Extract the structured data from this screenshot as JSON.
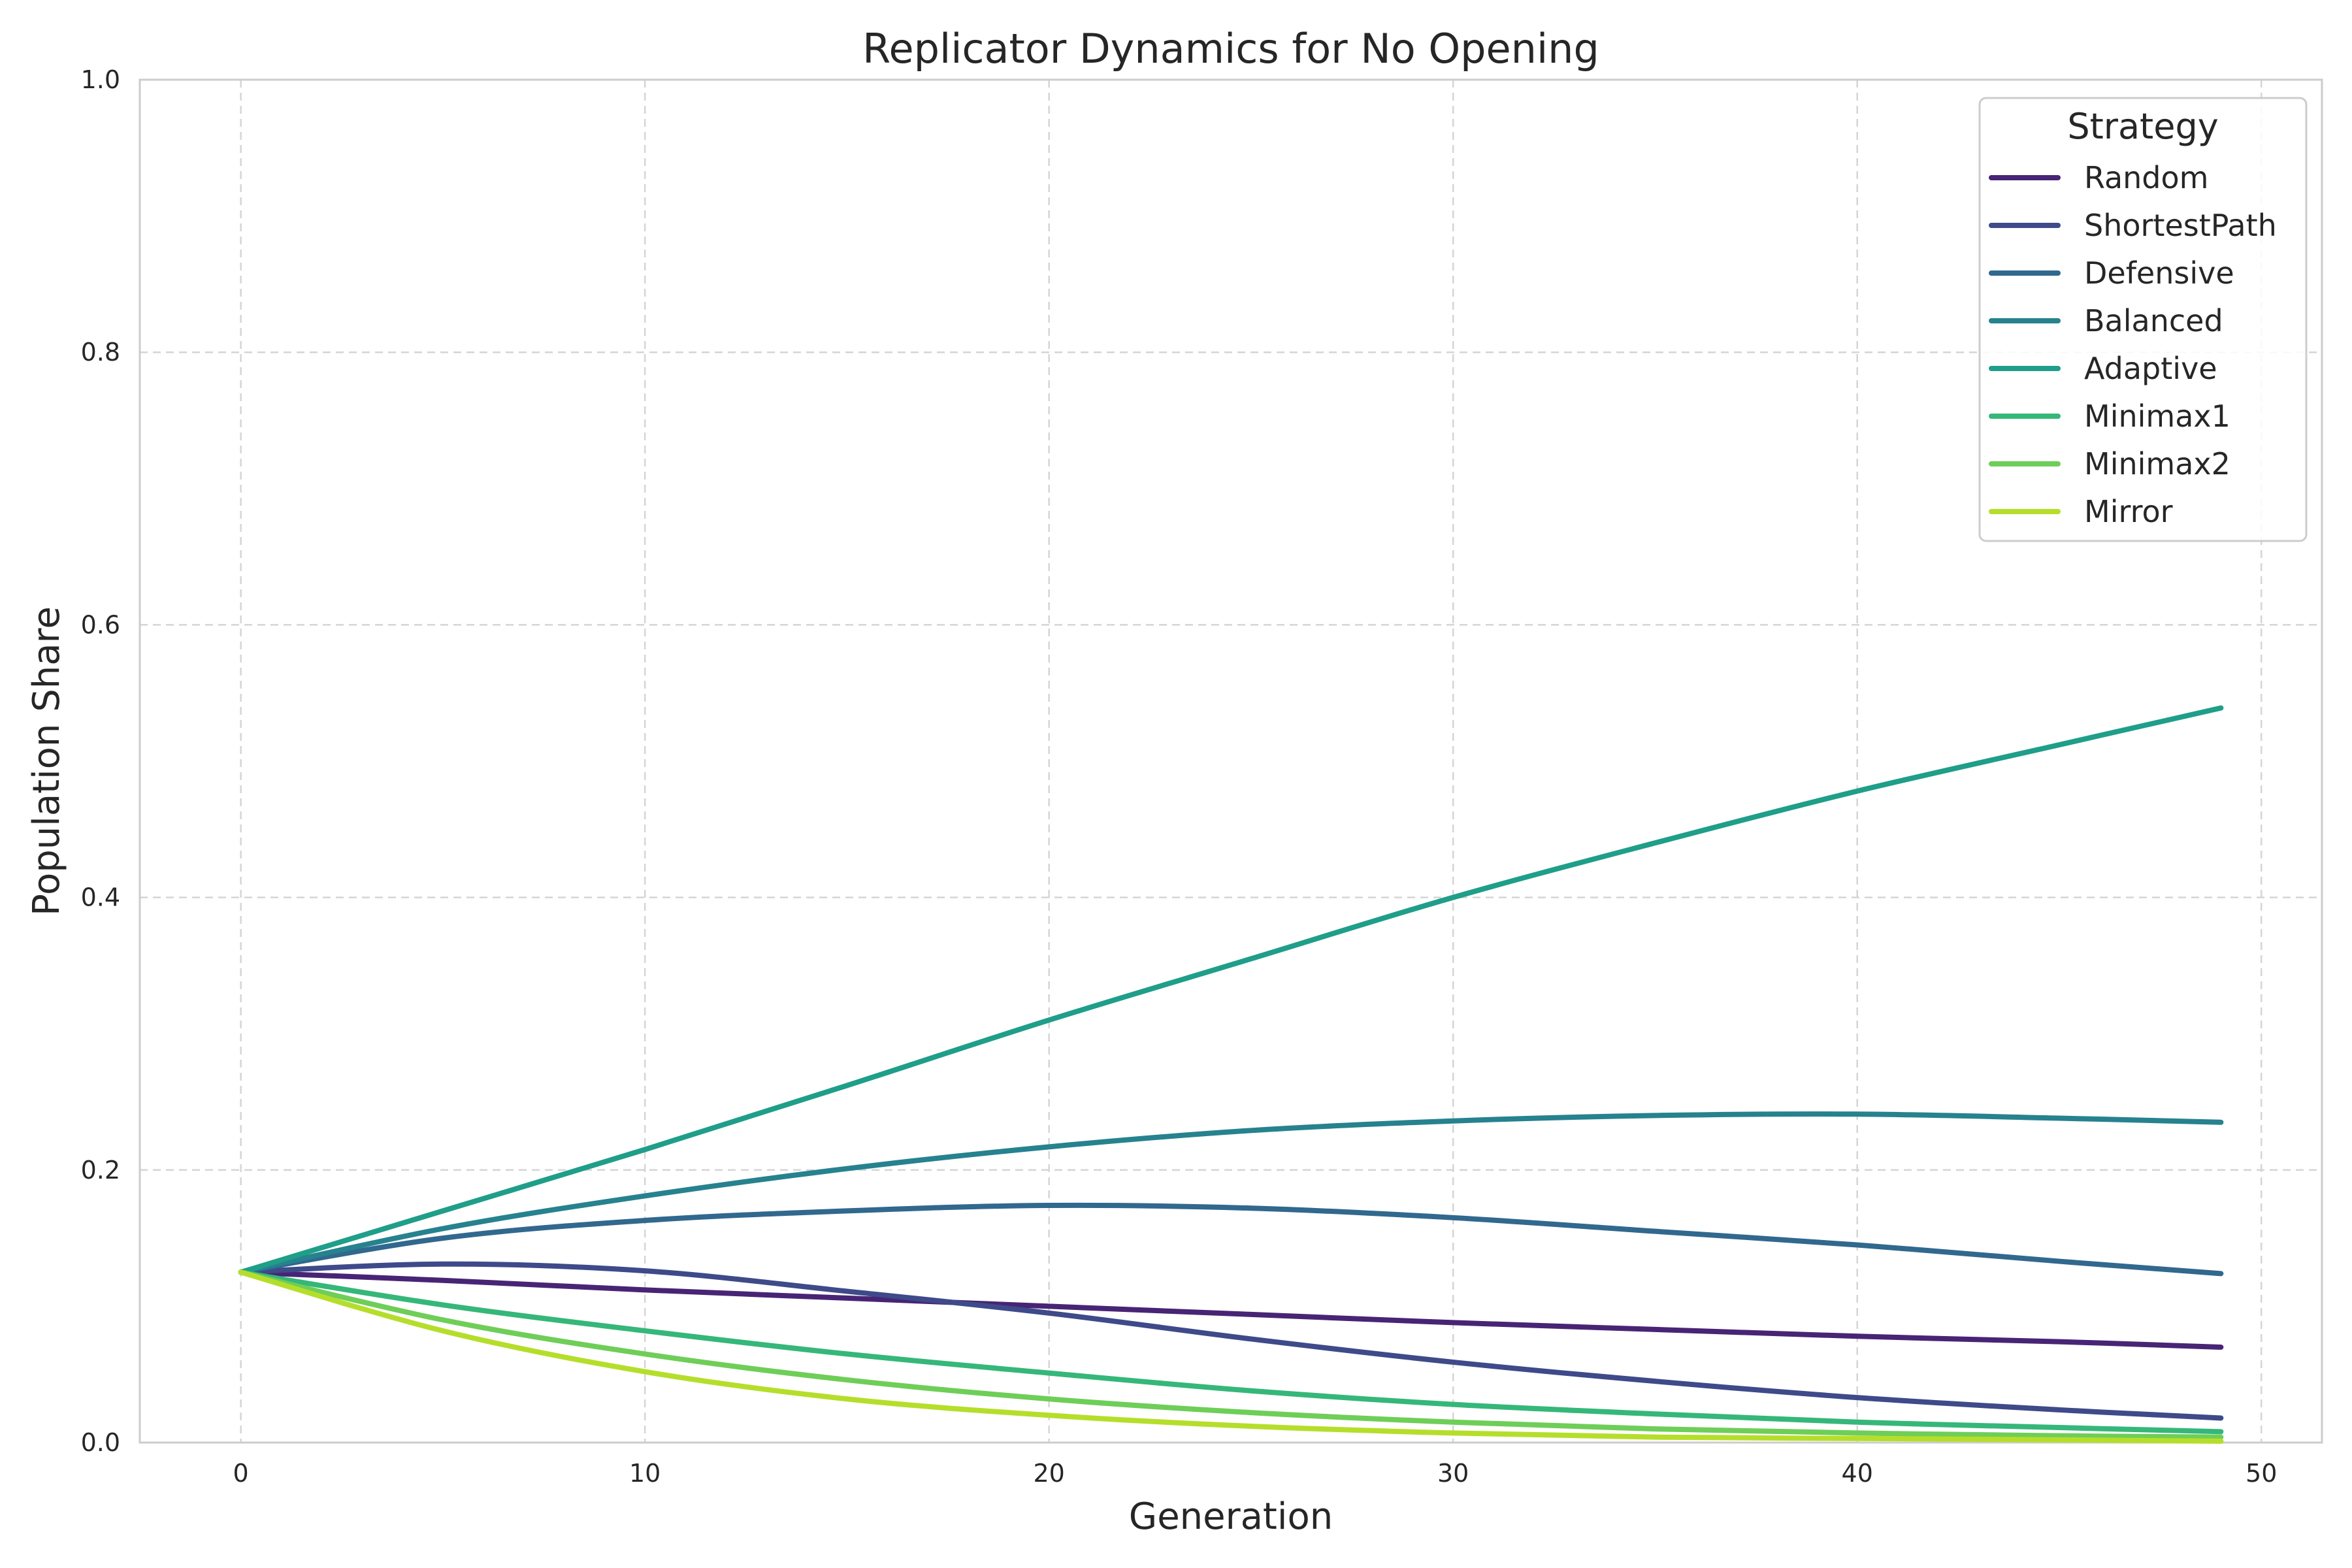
{
  "chart_data": {
    "type": "line",
    "title": "Replicator Dynamics for No Opening",
    "xlabel": "Generation",
    "ylabel": "Population Share",
    "xlim": [
      -2.5,
      51.5
    ],
    "ylim": [
      0,
      1
    ],
    "xticks": [
      0,
      10,
      20,
      30,
      40,
      50
    ],
    "yticks": [
      0.0,
      0.2,
      0.4,
      0.6,
      0.8,
      1.0
    ],
    "grid": true,
    "legend_title": "Strategy",
    "legend_position": "top-right",
    "x": [
      0,
      5,
      10,
      15,
      20,
      25,
      30,
      35,
      40,
      45,
      49
    ],
    "series": [
      {
        "name": "Random",
        "color": "#482475",
        "values": [
          0.125,
          0.119,
          0.112,
          0.106,
          0.1,
          0.094,
          0.088,
          0.083,
          0.078,
          0.074,
          0.07
        ]
      },
      {
        "name": "ShortestPath",
        "color": "#3e4a89",
        "values": [
          0.125,
          0.131,
          0.126,
          0.111,
          0.095,
          0.076,
          0.059,
          0.045,
          0.033,
          0.024,
          0.018
        ]
      },
      {
        "name": "Defensive",
        "color": "#31688e",
        "values": [
          0.125,
          0.15,
          0.163,
          0.17,
          0.174,
          0.172,
          0.165,
          0.155,
          0.145,
          0.133,
          0.124
        ]
      },
      {
        "name": "Balanced",
        "color": "#26828e",
        "values": [
          0.125,
          0.157,
          0.181,
          0.201,
          0.217,
          0.229,
          0.236,
          0.24,
          0.241,
          0.238,
          0.235
        ]
      },
      {
        "name": "Adaptive",
        "color": "#1f9e89",
        "values": [
          0.125,
          0.17,
          0.215,
          0.262,
          0.31,
          0.355,
          0.4,
          0.44,
          0.478,
          0.512,
          0.539
        ]
      },
      {
        "name": "Minimax1",
        "color": "#35b779",
        "values": [
          0.125,
          0.101,
          0.082,
          0.065,
          0.051,
          0.038,
          0.028,
          0.021,
          0.015,
          0.011,
          0.008
        ]
      },
      {
        "name": "Minimax2",
        "color": "#6ece58",
        "values": [
          0.125,
          0.09,
          0.065,
          0.046,
          0.032,
          0.022,
          0.015,
          0.01,
          0.007,
          0.005,
          0.004
        ]
      },
      {
        "name": "Mirror",
        "color": "#b5de2b",
        "values": [
          0.125,
          0.082,
          0.052,
          0.032,
          0.02,
          0.012,
          0.007,
          0.004,
          0.003,
          0.002,
          0.001
        ]
      }
    ]
  }
}
